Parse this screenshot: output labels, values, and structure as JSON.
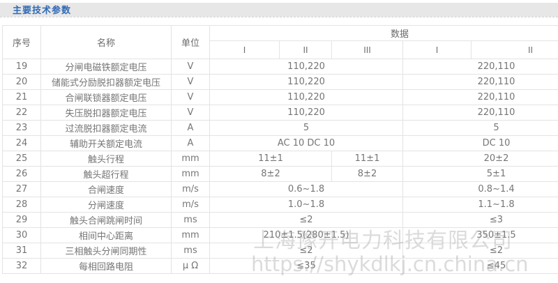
{
  "section": {
    "title": "主要技术参数"
  },
  "table": {
    "header": {
      "serial": "序号",
      "name": "名称",
      "unit": "单位",
      "data_group": "数据",
      "sub_columns": [
        "I",
        "II",
        "III",
        "I",
        "II"
      ]
    },
    "rows": [
      {
        "no": "19",
        "name": "分闸电磁铁额定电压",
        "unit": "V",
        "cells": [
          {
            "span": 3,
            "value": "110,220"
          },
          {
            "span": 2,
            "value": "220,110"
          }
        ]
      },
      {
        "no": "20",
        "name": "储能式分励脱扣器额定电压",
        "unit": "V",
        "cells": [
          {
            "span": 3,
            "value": "110,220"
          },
          {
            "span": 2,
            "value": "220,110"
          }
        ]
      },
      {
        "no": "21",
        "name": "合闸联锁器额定电压",
        "unit": "V",
        "cells": [
          {
            "span": 3,
            "value": "110,220"
          },
          {
            "span": 2,
            "value": "220,110"
          }
        ]
      },
      {
        "no": "22",
        "name": "失压脱扣器额定电压",
        "unit": "V",
        "cells": [
          {
            "span": 3,
            "value": "110,220"
          },
          {
            "span": 2,
            "value": "220,110"
          }
        ]
      },
      {
        "no": "23",
        "name": "过流脱扣器额定电流",
        "unit": "A",
        "cells": [
          {
            "span": 3,
            "value": "5"
          },
          {
            "span": 2,
            "value": "5"
          }
        ]
      },
      {
        "no": "24",
        "name": "辅助开关额定电流",
        "unit": "A",
        "cells": [
          {
            "span": 3,
            "value": "AC 10 DC 10"
          },
          {
            "span": 2,
            "value": "DC 10"
          }
        ]
      },
      {
        "no": "25",
        "name": "触头行程",
        "unit": "mm",
        "cells": [
          {
            "span": 2,
            "value": "11±1"
          },
          {
            "span": 1,
            "value": "11±1"
          },
          {
            "span": 2,
            "value": "20±2"
          }
        ]
      },
      {
        "no": "26",
        "name": "触头超行程",
        "unit": "mm",
        "cells": [
          {
            "span": 2,
            "value": "8±2"
          },
          {
            "span": 1,
            "value": "8±2"
          },
          {
            "span": 2,
            "value": "5±1"
          }
        ]
      },
      {
        "no": "27",
        "name": "合闸速度",
        "unit": "m/s",
        "cells": [
          {
            "span": 3,
            "value": "0.6~1.8"
          },
          {
            "span": 2,
            "value": "0.8~1.4"
          }
        ]
      },
      {
        "no": "28",
        "name": "分闸速度",
        "unit": "m/s",
        "cells": [
          {
            "span": 3,
            "value": "1.0~1.8"
          },
          {
            "span": 2,
            "value": "1.1~1.8"
          }
        ]
      },
      {
        "no": "29",
        "name": "触头合闸跳闸时间",
        "unit": "ms",
        "cells": [
          {
            "span": 3,
            "value": "≤2"
          },
          {
            "span": 2,
            "value": "≤3"
          }
        ]
      },
      {
        "no": "30",
        "name": "相间中心距离",
        "unit": "mm",
        "cells": [
          {
            "span": 3,
            "value": "210±1.5(280±1.5)"
          },
          {
            "span": 2,
            "value": "350±1.5"
          }
        ]
      },
      {
        "no": "31",
        "name": "三相触头分闸同期性",
        "unit": "ms",
        "cells": [
          {
            "span": 3,
            "value": "≤2"
          },
          {
            "span": 2,
            "value": "≤2"
          }
        ]
      },
      {
        "no": "32",
        "name": "每相回路电阻",
        "unit": "μ Ω",
        "cells": [
          {
            "span": 3,
            "value": "≤35"
          },
          {
            "span": 2,
            "value": "≤45"
          }
        ]
      }
    ]
  },
  "watermark": {
    "company": "上海豫开电力科技有限公司",
    "url": "https://shykdlkj.cn.china.cn"
  },
  "colors": {
    "accent_blue": "#2f6ab5",
    "title_bar_bg": "#e7e7e7",
    "table_border": "#e3e3e3",
    "body_text": "#757575",
    "watermark_gray": "#d4d4d4"
  }
}
